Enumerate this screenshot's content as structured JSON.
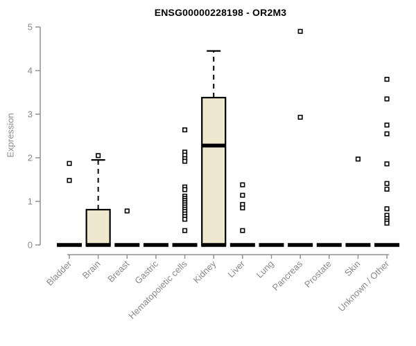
{
  "colors": {
    "box_fill": "#eee8cf",
    "box_stroke": "#000000",
    "median": "#000000",
    "marker_stroke": "#000000",
    "marker_fill": "#ffffff",
    "axis": "#919191",
    "text": "#8a8a8a",
    "title": "#000000"
  },
  "chart_data": {
    "type": "boxplot",
    "title": "ENSG00000228198 - OR2M3",
    "ylabel": "Expression",
    "xlabel": "",
    "ylim": [
      0,
      5
    ],
    "yticks": [
      0,
      1,
      2,
      3,
      4,
      5
    ],
    "grid": false,
    "legend": "none",
    "categories": [
      "Bladder",
      "Brain",
      "Breast",
      "Gastric",
      "Hematopoietic cells",
      "Kidney",
      "Liver",
      "Lung",
      "Pancreas",
      "Prostate",
      "Skin",
      "Unknown / Other"
    ],
    "boxes": [
      {
        "category": "Bladder",
        "q1": 0,
        "median": 0,
        "q3": 0,
        "whisker_low": 0,
        "whisker_high": 0,
        "outliers": [
          1.87,
          1.48
        ]
      },
      {
        "category": "Brain",
        "q1": 0,
        "median": 0,
        "q3": 0.81,
        "whisker_low": 0,
        "whisker_high": 1.95,
        "outliers": [
          2.05
        ]
      },
      {
        "category": "Breast",
        "q1": 0,
        "median": 0,
        "q3": 0,
        "whisker_low": 0,
        "whisker_high": 0,
        "outliers": [
          0.78
        ]
      },
      {
        "category": "Gastric",
        "q1": 0,
        "median": 0,
        "q3": 0,
        "whisker_low": 0,
        "whisker_high": 0,
        "outliers": []
      },
      {
        "category": "Hematopoietic cells",
        "q1": 0,
        "median": 0,
        "q3": 0,
        "whisker_low": 0,
        "whisker_high": 0,
        "outliers": [
          2.64,
          2.13,
          2.06,
          1.98,
          1.92,
          1.33,
          1.27,
          1.12,
          1.07,
          1.02,
          0.97,
          0.92,
          0.87,
          0.82,
          0.77,
          0.71,
          0.65,
          0.59,
          0.33
        ]
      },
      {
        "category": "Kidney",
        "q1": 0,
        "median": 2.28,
        "q3": 3.38,
        "whisker_low": 0,
        "whisker_high": 4.45,
        "outliers": []
      },
      {
        "category": "Liver",
        "q1": 0,
        "median": 0,
        "q3": 0,
        "whisker_low": 0,
        "whisker_high": 0,
        "outliers": [
          1.38,
          1.14,
          0.93,
          0.85,
          0.33
        ]
      },
      {
        "category": "Lung",
        "q1": 0,
        "median": 0,
        "q3": 0,
        "whisker_low": 0,
        "whisker_high": 0,
        "outliers": []
      },
      {
        "category": "Pancreas",
        "q1": 0,
        "median": 0,
        "q3": 0,
        "whisker_low": 0,
        "whisker_high": 0,
        "outliers": [
          4.9,
          2.93
        ]
      },
      {
        "category": "Prostate",
        "q1": 0,
        "median": 0,
        "q3": 0,
        "whisker_low": 0,
        "whisker_high": 0,
        "outliers": []
      },
      {
        "category": "Skin",
        "q1": 0,
        "median": 0,
        "q3": 0,
        "whisker_low": 0,
        "whisker_high": 0,
        "outliers": [
          1.97
        ]
      },
      {
        "category": "Unknown / Other",
        "q1": 0,
        "median": 0,
        "q3": 0,
        "whisker_low": 0,
        "whisker_high": 0,
        "outliers": [
          3.8,
          3.35,
          2.75,
          2.55,
          1.86,
          1.41,
          1.28,
          0.83,
          0.68,
          0.61,
          0.55,
          0.5
        ]
      }
    ]
  }
}
